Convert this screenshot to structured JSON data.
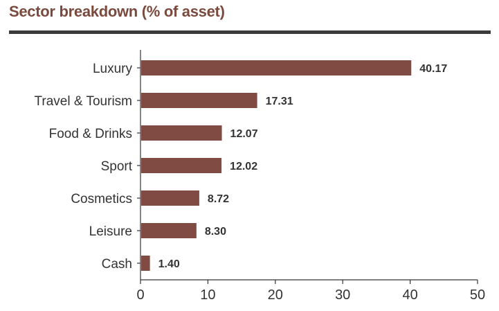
{
  "title": "Sector breakdown (% of asset)",
  "colors": {
    "bar": "#7f4b42",
    "title": "#7a4a3e",
    "axis": "#333333",
    "rule": "#3a3a3a"
  },
  "chart_data": {
    "type": "bar",
    "orientation": "horizontal",
    "title": "Sector breakdown (% of asset)",
    "categories": [
      "Luxury",
      "Travel & Tourism",
      "Food & Drinks",
      "Sport",
      "Cosmetics",
      "Leisure",
      "Cash"
    ],
    "values": [
      40.17,
      17.31,
      12.07,
      12.02,
      8.72,
      8.3,
      1.4
    ],
    "value_labels": [
      "40.17",
      "17.31",
      "12.07",
      "12.02",
      "8.72",
      "8.30",
      "1.40"
    ],
    "xlim": [
      0,
      50
    ],
    "xticks": [
      0,
      10,
      20,
      30,
      40,
      50
    ],
    "xlabel": "",
    "ylabel": "",
    "grid": false,
    "legend": "none"
  }
}
